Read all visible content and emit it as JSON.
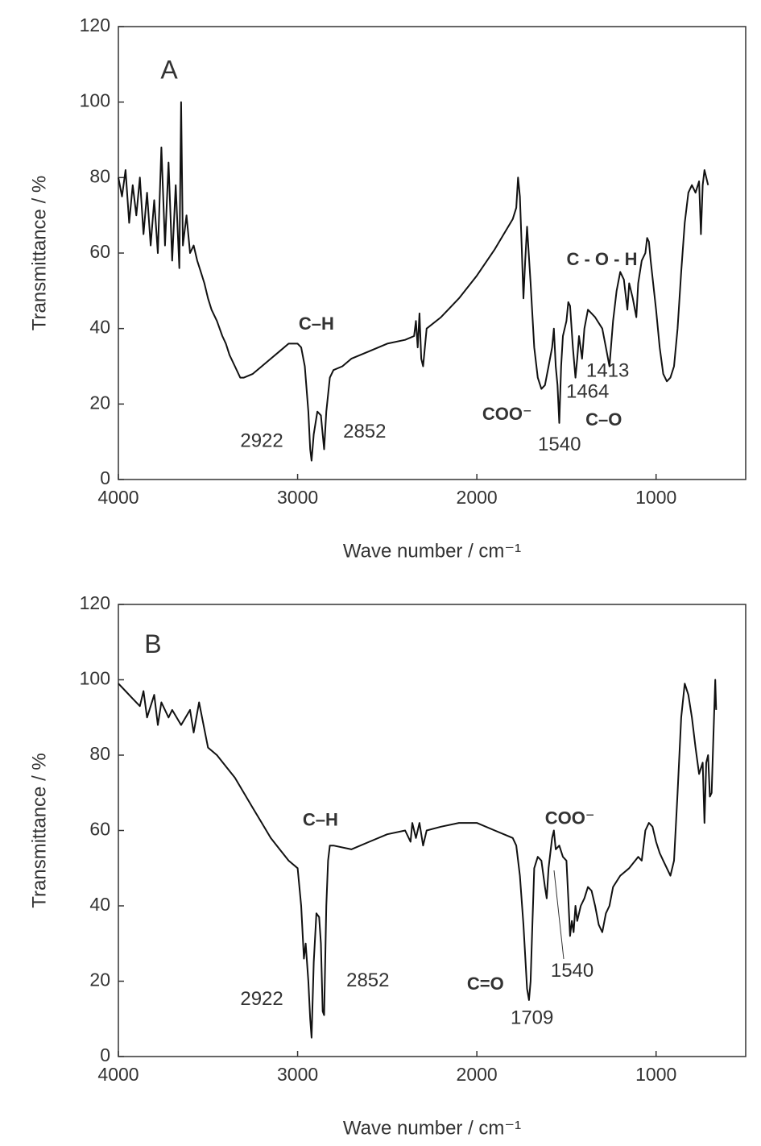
{
  "chart_data": [
    {
      "type": "line",
      "xlabel": "Wave number / cm⁻¹",
      "ylabel": "Transmittance / %",
      "xlim": [
        4000,
        500
      ],
      "xticks": [
        4000,
        3000,
        2000,
        1000
      ],
      "ylim": [
        0,
        120
      ],
      "yticks": [
        0,
        20,
        40,
        60,
        80,
        100,
        120
      ],
      "color": "#111111",
      "x": [
        4000,
        3980,
        3960,
        3940,
        3920,
        3900,
        3880,
        3860,
        3840,
        3820,
        3800,
        3780,
        3760,
        3740,
        3720,
        3700,
        3680,
        3660,
        3650,
        3640,
        3620,
        3600,
        3580,
        3560,
        3540,
        3520,
        3500,
        3480,
        3450,
        3420,
        3400,
        3380,
        3350,
        3320,
        3300,
        3250,
        3200,
        3150,
        3100,
        3050,
        3000,
        2980,
        2960,
        2940,
        2930,
        2922,
        2910,
        2890,
        2870,
        2860,
        2852,
        2840,
        2820,
        2800,
        2750,
        2700,
        2600,
        2500,
        2400,
        2350,
        2340,
        2330,
        2320,
        2310,
        2300,
        2280,
        2200,
        2100,
        2000,
        1900,
        1850,
        1800,
        1780,
        1770,
        1760,
        1750,
        1740,
        1730,
        1720,
        1700,
        1680,
        1660,
        1640,
        1620,
        1600,
        1580,
        1570,
        1560,
        1550,
        1540,
        1530,
        1520,
        1500,
        1490,
        1480,
        1464,
        1450,
        1440,
        1430,
        1413,
        1400,
        1380,
        1360,
        1340,
        1300,
        1280,
        1260,
        1240,
        1220,
        1200,
        1180,
        1160,
        1150,
        1130,
        1110,
        1100,
        1080,
        1060,
        1050,
        1040,
        1030,
        1000,
        980,
        960,
        940,
        920,
        900,
        880,
        860,
        840,
        820,
        800,
        780,
        760,
        750,
        740,
        730,
        710
      ],
      "values": [
        80,
        75,
        82,
        68,
        78,
        70,
        80,
        65,
        76,
        62,
        74,
        60,
        88,
        62,
        84,
        58,
        78,
        56,
        100,
        62,
        70,
        60,
        62,
        58,
        55,
        52,
        48,
        45,
        42,
        38,
        36,
        33,
        30,
        27,
        27,
        28,
        30,
        32,
        34,
        36,
        36,
        35,
        30,
        18,
        8,
        5,
        12,
        18,
        17,
        12,
        8,
        18,
        27,
        29,
        30,
        32,
        34,
        36,
        37,
        38,
        42,
        35,
        44,
        32,
        30,
        40,
        43,
        48,
        54,
        61,
        65,
        69,
        72,
        80,
        75,
        62,
        48,
        58,
        67,
        52,
        35,
        27,
        24,
        25,
        30,
        35,
        40,
        30,
        25,
        15,
        30,
        38,
        42,
        47,
        46,
        35,
        27,
        32,
        38,
        32,
        40,
        45,
        44,
        43,
        40,
        35,
        30,
        42,
        50,
        55,
        53,
        45,
        52,
        48,
        43,
        52,
        58,
        60,
        64,
        63,
        58,
        45,
        35,
        28,
        26,
        27,
        30,
        40,
        55,
        68,
        76,
        78,
        76,
        79,
        65,
        78,
        82,
        78
      ],
      "annotations": [
        {
          "text": "A",
          "x": 3717,
          "y": 108,
          "big": true
        },
        {
          "text": "C–H",
          "x": 2895,
          "y": 41,
          "bold": true
        },
        {
          "text": "2922",
          "x": 3200,
          "y": 10
        },
        {
          "text": "2852",
          "x": 2626,
          "y": 12.5
        },
        {
          "text": "C - O - H",
          "x": 1302,
          "y": 58,
          "bold": true
        },
        {
          "text": "1413",
          "x": 1270,
          "y": 28.6
        },
        {
          "text": "1464",
          "x": 1382,
          "y": 23
        },
        {
          "text": "COO⁻",
          "x": 1831,
          "y": 17,
          "bold": true
        },
        {
          "text": "C–O",
          "x": 1292,
          "y": 15.6,
          "bold": true
        },
        {
          "text": "1540",
          "x": 1539,
          "y": 9
        }
      ]
    },
    {
      "type": "line",
      "xlabel": "Wave number / cm⁻¹",
      "ylabel": "Transmittance / %",
      "xlim": [
        4000,
        500
      ],
      "xticks": [
        4000,
        3000,
        2000,
        1000
      ],
      "ylim": [
        0,
        120
      ],
      "yticks": [
        0,
        20,
        40,
        60,
        80,
        100,
        120
      ],
      "color": "#111111",
      "x": [
        4000,
        3960,
        3920,
        3880,
        3860,
        3840,
        3800,
        3780,
        3760,
        3720,
        3700,
        3650,
        3600,
        3580,
        3550,
        3500,
        3450,
        3400,
        3350,
        3300,
        3250,
        3200,
        3150,
        3100,
        3050,
        3000,
        2980,
        2965,
        2955,
        2940,
        2930,
        2922,
        2910,
        2895,
        2880,
        2870,
        2860,
        2852,
        2840,
        2830,
        2820,
        2800,
        2700,
        2600,
        2500,
        2400,
        2370,
        2360,
        2340,
        2320,
        2300,
        2280,
        2200,
        2100,
        2000,
        1900,
        1800,
        1780,
        1760,
        1740,
        1720,
        1709,
        1700,
        1690,
        1680,
        1660,
        1640,
        1620,
        1610,
        1600,
        1580,
        1570,
        1560,
        1540,
        1520,
        1500,
        1490,
        1480,
        1470,
        1460,
        1450,
        1440,
        1420,
        1400,
        1380,
        1360,
        1340,
        1320,
        1300,
        1280,
        1260,
        1240,
        1200,
        1150,
        1100,
        1080,
        1060,
        1040,
        1020,
        1000,
        980,
        960,
        940,
        920,
        900,
        880,
        860,
        840,
        820,
        800,
        780,
        760,
        740,
        730,
        720,
        710,
        700,
        690,
        680,
        670,
        665
      ],
      "values": [
        99,
        97,
        95,
        93,
        97,
        90,
        96,
        88,
        94,
        90,
        92,
        88,
        92,
        86,
        94,
        82,
        80,
        77,
        74,
        70,
        66,
        62,
        58,
        55,
        52,
        50,
        40,
        26,
        30,
        20,
        10,
        5,
        25,
        38,
        37,
        30,
        12,
        11,
        40,
        52,
        56,
        56,
        55,
        57,
        59,
        60,
        57,
        62,
        58,
        62,
        56,
        60,
        61,
        62,
        62,
        60,
        58,
        56,
        48,
        35,
        18,
        15,
        20,
        35,
        50,
        53,
        52,
        45,
        42,
        50,
        58,
        60,
        55,
        56,
        53,
        52,
        42,
        32,
        36,
        33,
        40,
        36,
        40,
        42,
        45,
        44,
        40,
        35,
        33,
        38,
        40,
        45,
        48,
        50,
        53,
        52,
        60,
        62,
        61,
        57,
        54,
        52,
        50,
        48,
        52,
        70,
        90,
        99,
        96,
        90,
        82,
        75,
        78,
        62,
        78,
        80,
        69,
        70,
        85,
        100,
        92
      ],
      "annotations": [
        {
          "text": "B",
          "x": 3807,
          "y": 109,
          "big": true
        },
        {
          "text": "C–H",
          "x": 2873,
          "y": 62.5,
          "bold": true
        },
        {
          "text": "2922",
          "x": 3200,
          "y": 15
        },
        {
          "text": "2852",
          "x": 2608,
          "y": 20
        },
        {
          "text": "COO⁻",
          "x": 1481,
          "y": 63,
          "bold": true
        },
        {
          "text": "1540",
          "x": 1468,
          "y": 22.5
        },
        {
          "text": "C=O",
          "x": 1952,
          "y": 19,
          "bold": true
        },
        {
          "text": "1709",
          "x": 1692,
          "y": 10
        }
      ]
    }
  ]
}
